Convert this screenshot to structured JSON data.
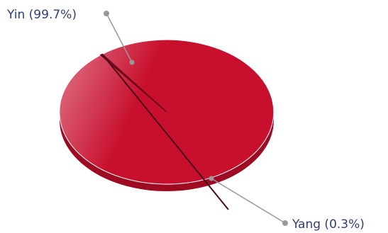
{
  "chart_data": {
    "type": "pie",
    "style": "3d",
    "slices": [
      {
        "label": "Yin",
        "value": 99.7,
        "display": "Yin (99.7%)"
      },
      {
        "label": "Yang",
        "value": 0.3,
        "display": "Yang (0.3%)"
      }
    ],
    "legend": "none",
    "colors": {
      "slice": "#c8102e",
      "slice_highlight": "#e07a8c",
      "side": "#9e0a22",
      "connector": "#999999",
      "label_text": "#2d3f73"
    }
  }
}
